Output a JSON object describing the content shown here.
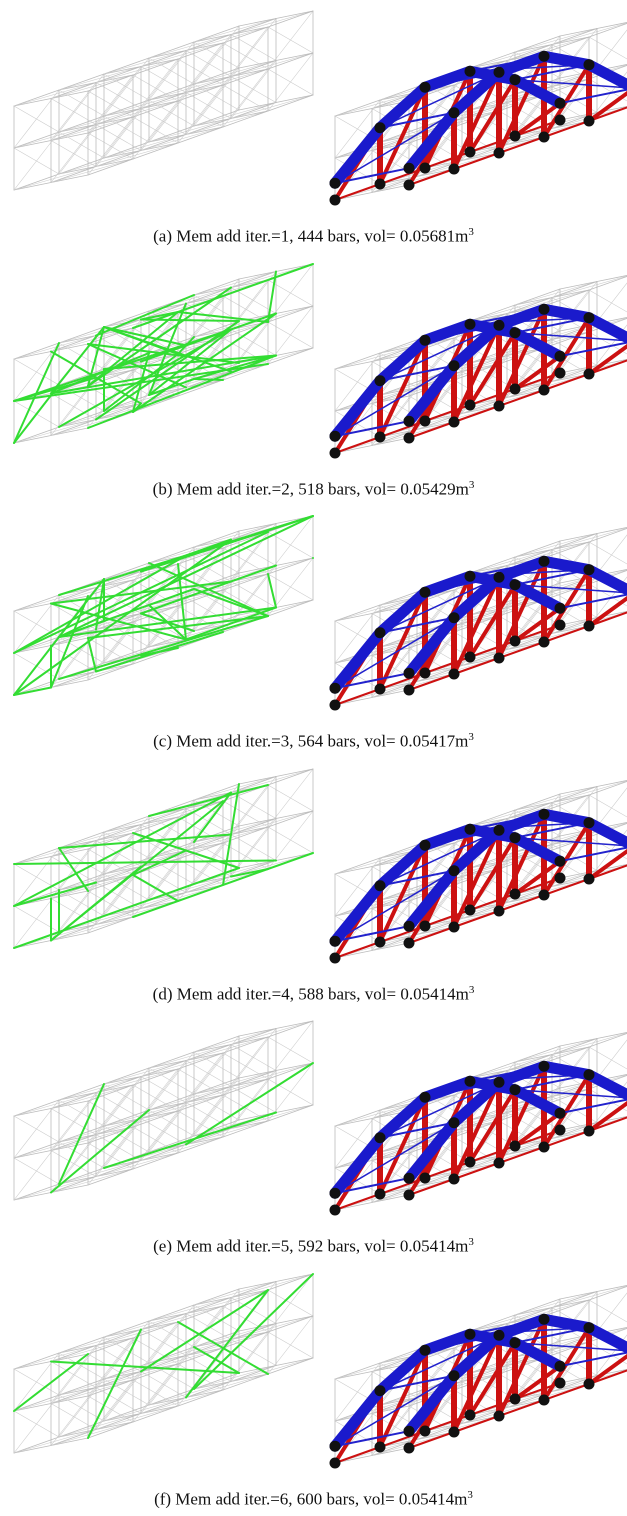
{
  "figure": {
    "panels": [
      {
        "caption": "(a) Mem add iter.=1, 444 bars, vol= 0.05681m",
        "exponent": "3"
      },
      {
        "caption": "(b) Mem add iter.=2, 518 bars, vol= 0.05429m",
        "exponent": "3"
      },
      {
        "caption": "(c) Mem add iter.=3, 564 bars, vol= 0.05417m",
        "exponent": "3"
      },
      {
        "caption": "(d) Mem add iter.=4, 588 bars, vol= 0.05414m",
        "exponent": "3"
      },
      {
        "caption": "(e) Mem add iter.=5, 592 bars, vol= 0.05414m",
        "exponent": "3"
      },
      {
        "caption": "(f) Mem add iter.=6, 600 bars, vol= 0.05414m",
        "exponent": "3"
      }
    ]
  }
}
